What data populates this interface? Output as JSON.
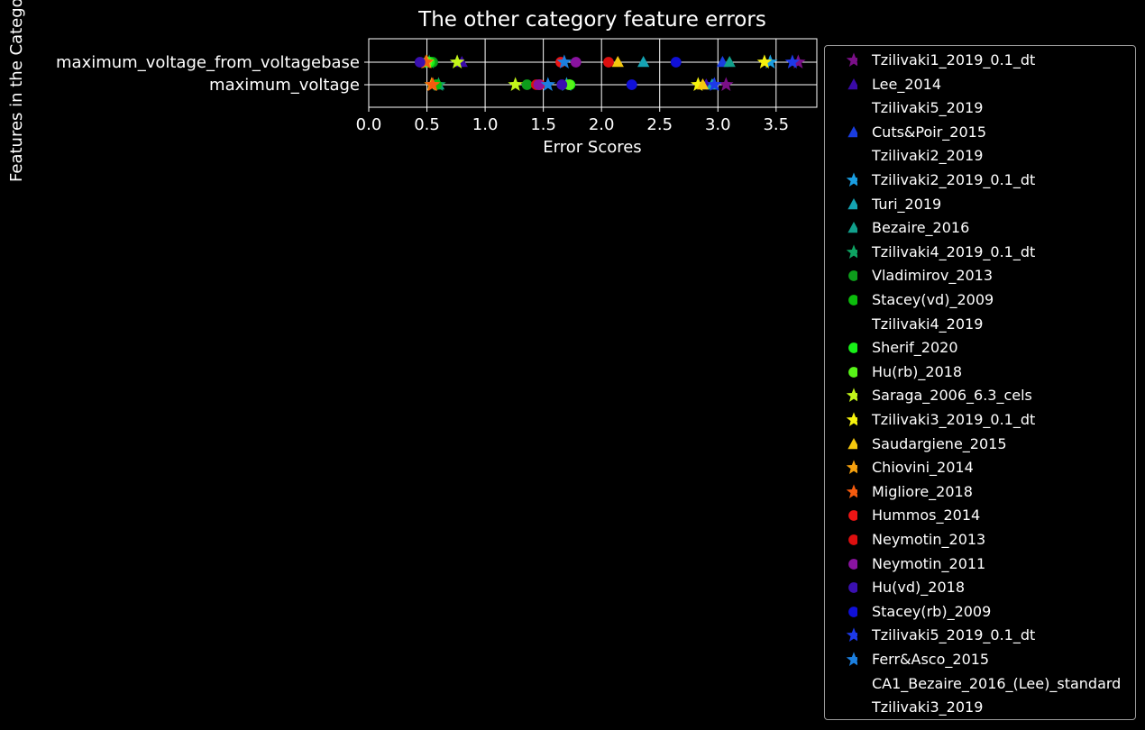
{
  "chart_data": {
    "type": "scatter",
    "title": "The other category feature errors",
    "xlabel": "Error Scores",
    "ylabel": "Features in the Category",
    "xlim": [
      0,
      3.85
    ],
    "xticks": [
      0.0,
      0.5,
      1.0,
      1.5,
      2.0,
      2.5,
      3.0,
      3.5
    ],
    "xtick_labels": [
      "0.0",
      "0.5",
      "1.0",
      "1.5",
      "2.0",
      "2.5",
      "3.0",
      "3.5"
    ],
    "categories": [
      "maximum_voltage_from_voltagebase",
      "maximum_voltage"
    ],
    "grid": true,
    "legend_position": "outside-right",
    "series": [
      {
        "name": "Tzilivaki1_2019_0.1_dt",
        "marker": "star",
        "color": "#7a0f87",
        "values": [
          3.69,
          3.07
        ]
      },
      {
        "name": "Lee_2014",
        "marker": "triangle",
        "color": "#3a0aa8",
        "values": [
          0.8,
          2.9
        ]
      },
      {
        "name": "Tzilivaki5_2019",
        "marker": "none",
        "color": "#ffffff",
        "values": [
          null,
          null
        ]
      },
      {
        "name": "Cuts&Poir_2015",
        "marker": "triangle",
        "color": "#1a3de0",
        "values": [
          3.04,
          2.96
        ]
      },
      {
        "name": "Tzilivaki2_2019",
        "marker": "none",
        "color": "#ffffff",
        "values": [
          null,
          null
        ]
      },
      {
        "name": "Tzilivaki2_2019_0.1_dt",
        "marker": "star",
        "color": "#1a9de0",
        "values": [
          3.45,
          1.7
        ]
      },
      {
        "name": "Turi_2019",
        "marker": "triangle",
        "color": "#15a3b3",
        "values": [
          2.36,
          2.95
        ]
      },
      {
        "name": "Bezaire_2016",
        "marker": "triangle",
        "color": "#11a08c",
        "values": [
          3.1,
          0.6
        ]
      },
      {
        "name": "Tzilivaki4_2019_0.1_dt",
        "marker": "star",
        "color": "#0ea362",
        "values": [
          0.52,
          0.6
        ]
      },
      {
        "name": "Vladimirov_2013",
        "marker": "circle",
        "color": "#0d9d1b",
        "values": [
          0.55,
          1.36
        ]
      },
      {
        "name": "Stacey(vd)_2009",
        "marker": "circle",
        "color": "#0cbc0c",
        "values": [
          0.53,
          0.58
        ]
      },
      {
        "name": "Tzilivaki4_2019",
        "marker": "none",
        "color": "#ffffff",
        "values": [
          null,
          null
        ]
      },
      {
        "name": "Sherif_2020",
        "marker": "circle",
        "color": "#18f018",
        "values": [
          0.52,
          1.73
        ]
      },
      {
        "name": "Hu(rb)_2018",
        "marker": "circle",
        "color": "#58f518",
        "values": [
          0.5,
          1.72
        ]
      },
      {
        "name": "Saraga_2006_6.3_cels",
        "marker": "star",
        "color": "#c2f51a",
        "values": [
          0.76,
          1.26
        ]
      },
      {
        "name": "Tzilivaki3_2019_0.1_dt",
        "marker": "star",
        "color": "#f5f20e",
        "values": [
          3.4,
          2.83
        ]
      },
      {
        "name": "Saudargiene_2015",
        "marker": "triangle",
        "color": "#f5c80e",
        "values": [
          2.14,
          2.87
        ]
      },
      {
        "name": "Chiovini_2014",
        "marker": "star",
        "color": "#f5a00e",
        "values": [
          0.5,
          0.54
        ]
      },
      {
        "name": "Migliore_2018",
        "marker": "star",
        "color": "#f55b0e",
        "values": [
          0.49,
          0.55
        ]
      },
      {
        "name": "Hummos_2014",
        "marker": "circle",
        "color": "#ee1515",
        "values": [
          1.65,
          1.47
        ]
      },
      {
        "name": "Neymotin_2013",
        "marker": "circle",
        "color": "#dd0f0f",
        "values": [
          2.06,
          1.44
        ]
      },
      {
        "name": "Neymotin_2011",
        "marker": "circle",
        "color": "#8a13a0",
        "values": [
          1.78,
          1.46
        ]
      },
      {
        "name": "Hu(vd)_2018",
        "marker": "circle",
        "color": "#3a10b0",
        "values": [
          0.44,
          1.66
        ]
      },
      {
        "name": "Stacey(rb)_2009",
        "marker": "circle",
        "color": "#1010d8",
        "values": [
          2.64,
          2.26
        ]
      },
      {
        "name": "Tzilivaki5_2019_0.1_dt",
        "marker": "star",
        "color": "#1d3ae8",
        "values": [
          3.64,
          2.97
        ]
      },
      {
        "name": "Ferr&Asco_2015",
        "marker": "star",
        "color": "#1c80e0",
        "values": [
          1.68,
          1.54
        ]
      },
      {
        "name": "CA1_Bezaire_2016_(Lee)_standard",
        "marker": "none",
        "color": "#ffffff",
        "values": [
          null,
          null
        ]
      },
      {
        "name": "Tzilivaki3_2019",
        "marker": "none",
        "color": "#ffffff",
        "values": [
          null,
          null
        ]
      }
    ]
  }
}
